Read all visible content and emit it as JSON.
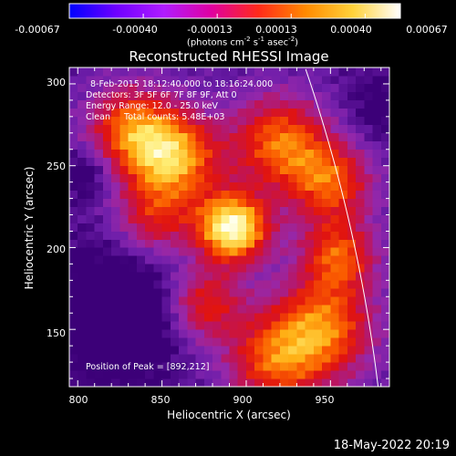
{
  "colorbar": {
    "ticks": [
      "-0.00067",
      "-0.00040",
      "-0.00013",
      "0.00013",
      "0.00040",
      "0.00067"
    ],
    "units_main": "(photons cm",
    "units_exp1": "-2",
    "units_mid1": " s",
    "units_exp2": "-1",
    "units_mid2": " asec",
    "units_exp3": "-2",
    "units_end": ")",
    "colormap_stops": [
      "#0000ff",
      "#6f00ff",
      "#b01cff",
      "#e000a0",
      "#ff2a1a",
      "#ff8a00",
      "#ffd23a",
      "#ffffff"
    ]
  },
  "plot": {
    "title": "Reconstructed RHESSI Image",
    "info_lines": [
      "8-Feb-2015 18:12:40.000 to 18:16:24.000",
      "Detectors: 3F 5F 6F 7F 8F 9F, Att 0",
      "Energy Range: 12.0 - 25.0 keV",
      "Clean     Total counts: 5.48E+03"
    ],
    "peak_text": "Position of Peak = [892,212]",
    "xlabel": "Heliocentric X (arcsec)",
    "ylabel": "Heliocentric Y (arcsec)",
    "xticks": [
      "800",
      "850",
      "900",
      "950"
    ],
    "yticks": [
      "150",
      "200",
      "250",
      "300"
    ],
    "xlim": [
      795,
      985
    ],
    "ylim": [
      115,
      310
    ],
    "peak": [
      892,
      212
    ],
    "limb_color": "#ffffff",
    "frame_color": "#ffffff"
  },
  "timestamp": "18-May-2022 20:19"
}
